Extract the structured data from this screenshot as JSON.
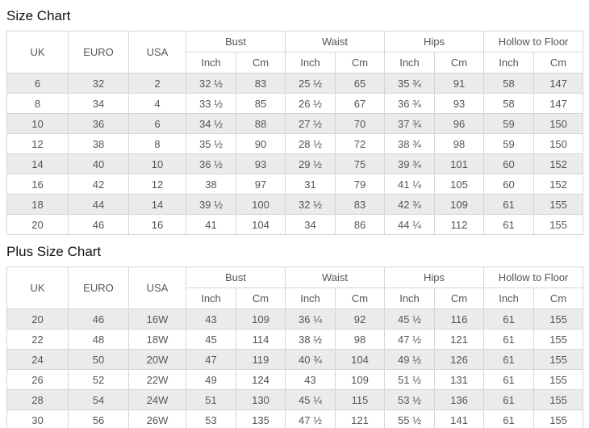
{
  "page": {
    "background_color": "#ffffff",
    "text_color": "#555555",
    "title_color": "#111111",
    "border_color": "#d6d6d6",
    "stripe_color": "#ebebeb"
  },
  "tables": [
    {
      "title": "Size Chart",
      "base_headers": [
        "UK",
        "EURO",
        "USA"
      ],
      "groups": [
        "Bust",
        "Waist",
        "Hips",
        "Hollow to Floor"
      ],
      "units": [
        "Inch",
        "Cm"
      ],
      "rows": [
        [
          "6",
          "32",
          "2",
          "32 ½",
          "83",
          "25 ½",
          "65",
          "35 ¾",
          "91",
          "58",
          "147"
        ],
        [
          "8",
          "34",
          "4",
          "33 ½",
          "85",
          "26 ½",
          "67",
          "36 ¾",
          "93",
          "58",
          "147"
        ],
        [
          "10",
          "36",
          "6",
          "34 ½",
          "88",
          "27 ½",
          "70",
          "37 ¾",
          "96",
          "59",
          "150"
        ],
        [
          "12",
          "38",
          "8",
          "35 ½",
          "90",
          "28 ½",
          "72",
          "38 ¾",
          "98",
          "59",
          "150"
        ],
        [
          "14",
          "40",
          "10",
          "36 ½",
          "93",
          "29 ½",
          "75",
          "39 ¾",
          "101",
          "60",
          "152"
        ],
        [
          "16",
          "42",
          "12",
          "38",
          "97",
          "31",
          "79",
          "41 ¼",
          "105",
          "60",
          "152"
        ],
        [
          "18",
          "44",
          "14",
          "39 ½",
          "100",
          "32 ½",
          "83",
          "42 ¾",
          "109",
          "61",
          "155"
        ],
        [
          "20",
          "46",
          "16",
          "41",
          "104",
          "34",
          "86",
          "44 ¼",
          "112",
          "61",
          "155"
        ]
      ]
    },
    {
      "title": "Plus Size Chart",
      "base_headers": [
        "UK",
        "EURO",
        "USA"
      ],
      "groups": [
        "Bust",
        "Waist",
        "Hips",
        "Hollow to Floor"
      ],
      "units": [
        "Inch",
        "Cm"
      ],
      "rows": [
        [
          "20",
          "46",
          "16W",
          "43",
          "109",
          "36 ¼",
          "92",
          "45 ½",
          "116",
          "61",
          "155"
        ],
        [
          "22",
          "48",
          "18W",
          "45",
          "114",
          "38 ½",
          "98",
          "47 ½",
          "121",
          "61",
          "155"
        ],
        [
          "24",
          "50",
          "20W",
          "47",
          "119",
          "40 ¾",
          "104",
          "49 ½",
          "126",
          "61",
          "155"
        ],
        [
          "26",
          "52",
          "22W",
          "49",
          "124",
          "43",
          "109",
          "51 ½",
          "131",
          "61",
          "155"
        ],
        [
          "28",
          "54",
          "24W",
          "51",
          "130",
          "45 ¼",
          "115",
          "53 ½",
          "136",
          "61",
          "155"
        ],
        [
          "30",
          "56",
          "26W",
          "53",
          "135",
          "47 ½",
          "121",
          "55 ½",
          "141",
          "61",
          "155"
        ]
      ]
    }
  ]
}
